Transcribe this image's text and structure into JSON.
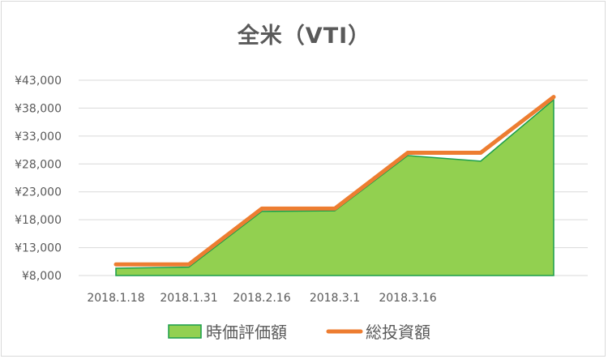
{
  "chart_data": {
    "type": "area",
    "title": "全米（VTI）",
    "xlabel": "",
    "ylabel": "",
    "x_tick_labels": [
      "2018.1.18",
      "2018.1.31",
      "2018.2.16",
      "2018.3.1",
      "2018.3.16"
    ],
    "y_tick_labels": [
      "¥8,000",
      "¥13,000",
      "¥18,000",
      "¥23,000",
      "¥28,000",
      "¥33,000",
      "¥38,000",
      "¥43,000"
    ],
    "y_ticks": [
      8000,
      13000,
      18000,
      23000,
      28000,
      33000,
      38000,
      43000
    ],
    "ylim": [
      8000,
      43000
    ],
    "grid": true,
    "legend_position": "bottom",
    "series": [
      {
        "name": "時価評価額",
        "kind": "area",
        "color": "#92d050",
        "edge_color": "#1a9e4a",
        "values": [
          9300,
          9500,
          19500,
          19600,
          29500,
          28500,
          39500
        ]
      },
      {
        "name": "総投資額",
        "kind": "line",
        "color": "#ed7d31",
        "values": [
          10000,
          10000,
          20000,
          20000,
          30000,
          30000,
          40000
        ]
      }
    ]
  }
}
